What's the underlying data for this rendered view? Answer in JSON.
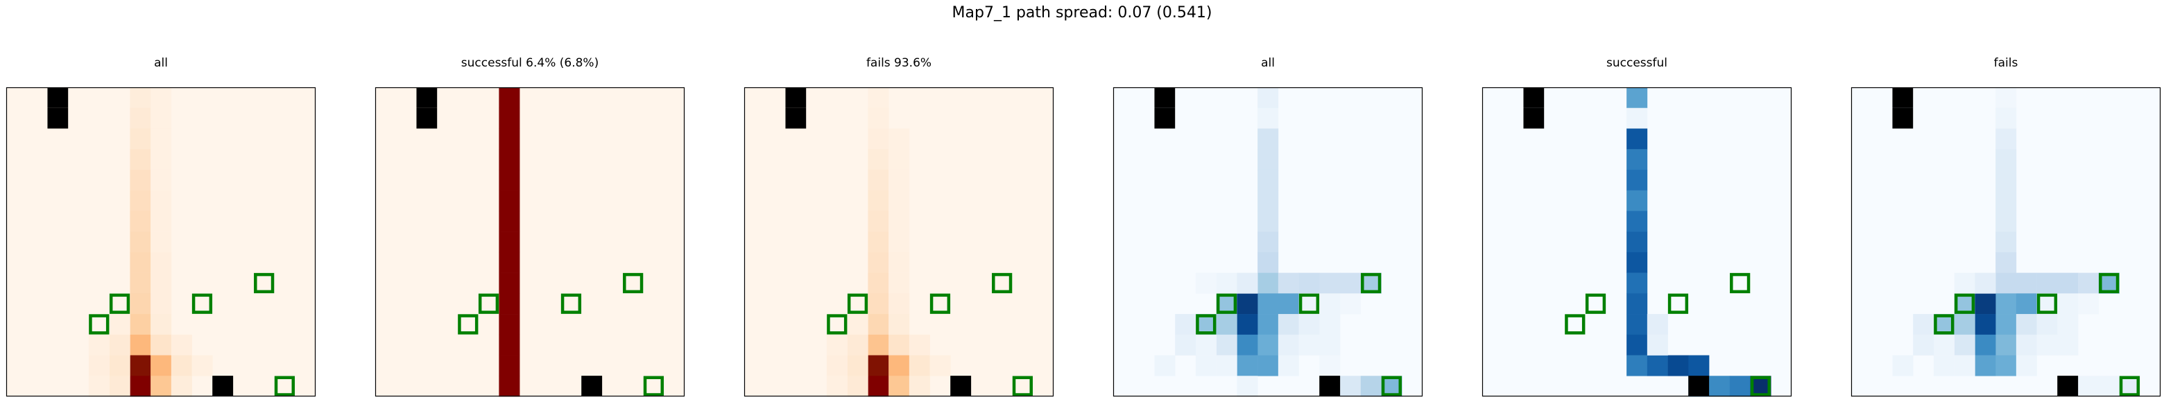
{
  "suptitle": "Map7_1 path spread: 0.07 (0.541)",
  "chart_data": {
    "type": "heatmap",
    "grid": {
      "rows": 15,
      "cols": 15
    },
    "colormaps": {
      "Reds": [
        "#fff5eb",
        "#fee6ce",
        "#fdd0a2",
        "#fdae6b",
        "#fd8d3c",
        "#f16913",
        "#d94801",
        "#a63603",
        "#7f2704",
        "#800000"
      ],
      "Blues": [
        "#f7fbff",
        "#deebf7",
        "#c6dbef",
        "#9ecae1",
        "#6baed6",
        "#4292c6",
        "#2171b5",
        "#08519c",
        "#08306b"
      ]
    },
    "markers": {
      "obstacles": [
        [
          0,
          2
        ],
        [
          1,
          2
        ],
        [
          14,
          10
        ],
        [
          14,
          10
        ]
      ],
      "goals": [
        [
          9,
          12
        ],
        [
          10,
          5
        ],
        [
          10,
          9
        ],
        [
          11,
          4
        ],
        [
          14,
          13
        ]
      ]
    },
    "marker_colors": {
      "obstacle": "#000000",
      "goal_outline": "#008000"
    },
    "panels": [
      {
        "title": "all",
        "cmap": "Reds",
        "cells": [
          [
            0,
            6,
            0.06
          ],
          [
            1,
            6,
            0.08
          ],
          [
            2,
            6,
            0.1
          ],
          [
            3,
            6,
            0.12
          ],
          [
            4,
            6,
            0.14
          ],
          [
            5,
            6,
            0.15
          ],
          [
            6,
            6,
            0.16
          ],
          [
            7,
            6,
            0.17
          ],
          [
            8,
            6,
            0.18
          ],
          [
            9,
            6,
            0.18
          ],
          [
            10,
            6,
            0.19
          ],
          [
            11,
            6,
            0.22
          ],
          [
            12,
            6,
            0.3
          ],
          [
            13,
            6,
            0.95
          ],
          [
            14,
            6,
            1.0
          ],
          [
            0,
            7,
            0.03
          ],
          [
            1,
            7,
            0.03
          ],
          [
            2,
            7,
            0.03
          ],
          [
            3,
            7,
            0.03
          ],
          [
            4,
            7,
            0.03
          ],
          [
            5,
            7,
            0.04
          ],
          [
            6,
            7,
            0.04
          ],
          [
            7,
            7,
            0.04
          ],
          [
            8,
            7,
            0.05
          ],
          [
            9,
            7,
            0.05
          ],
          [
            10,
            7,
            0.05
          ],
          [
            11,
            7,
            0.06
          ],
          [
            12,
            7,
            0.12
          ],
          [
            13,
            7,
            0.3
          ],
          [
            14,
            7,
            0.25
          ],
          [
            11,
            5,
            0.04
          ],
          [
            12,
            5,
            0.08
          ],
          [
            13,
            5,
            0.1
          ],
          [
            14,
            5,
            0.08
          ],
          [
            12,
            4,
            0.04
          ],
          [
            13,
            4,
            0.05
          ],
          [
            14,
            4,
            0.04
          ],
          [
            12,
            8,
            0.05
          ],
          [
            13,
            8,
            0.1
          ],
          [
            14,
            8,
            0.06
          ],
          [
            13,
            9,
            0.04
          ]
        ]
      },
      {
        "title": "successful 6.4% (6.8%)",
        "cmap": "Reds",
        "cells": [
          [
            0,
            6,
            1.0
          ],
          [
            1,
            6,
            1.0
          ],
          [
            2,
            6,
            1.0
          ],
          [
            3,
            6,
            1.0
          ],
          [
            4,
            6,
            1.0
          ],
          [
            5,
            6,
            1.0
          ],
          [
            6,
            6,
            1.0
          ],
          [
            7,
            6,
            1.0
          ],
          [
            8,
            6,
            1.0
          ],
          [
            9,
            6,
            1.0
          ],
          [
            10,
            6,
            1.0
          ],
          [
            11,
            6,
            1.0
          ],
          [
            12,
            6,
            1.0
          ],
          [
            13,
            6,
            1.0
          ],
          [
            14,
            6,
            1.0
          ]
        ]
      },
      {
        "title": "fails 93.6%",
        "cmap": "Reds",
        "cells": [
          [
            0,
            6,
            0.03
          ],
          [
            1,
            6,
            0.04
          ],
          [
            2,
            6,
            0.05
          ],
          [
            3,
            6,
            0.07
          ],
          [
            4,
            6,
            0.09
          ],
          [
            5,
            6,
            0.1
          ],
          [
            6,
            6,
            0.11
          ],
          [
            7,
            6,
            0.12
          ],
          [
            8,
            6,
            0.13
          ],
          [
            9,
            6,
            0.14
          ],
          [
            10,
            6,
            0.15
          ],
          [
            11,
            6,
            0.18
          ],
          [
            12,
            6,
            0.26
          ],
          [
            13,
            6,
            0.95
          ],
          [
            14,
            6,
            1.0
          ],
          [
            2,
            7,
            0.03
          ],
          [
            3,
            7,
            0.03
          ],
          [
            4,
            7,
            0.03
          ],
          [
            5,
            7,
            0.03
          ],
          [
            6,
            7,
            0.03
          ],
          [
            7,
            7,
            0.03
          ],
          [
            8,
            7,
            0.04
          ],
          [
            9,
            7,
            0.04
          ],
          [
            10,
            7,
            0.05
          ],
          [
            11,
            7,
            0.06
          ],
          [
            12,
            7,
            0.12
          ],
          [
            13,
            7,
            0.3
          ],
          [
            14,
            7,
            0.25
          ],
          [
            11,
            5,
            0.04
          ],
          [
            12,
            5,
            0.08
          ],
          [
            13,
            5,
            0.1
          ],
          [
            14,
            5,
            0.08
          ],
          [
            12,
            4,
            0.04
          ],
          [
            13,
            4,
            0.05
          ],
          [
            14,
            4,
            0.04
          ],
          [
            12,
            8,
            0.05
          ],
          [
            13,
            8,
            0.1
          ],
          [
            14,
            8,
            0.06
          ],
          [
            13,
            9,
            0.04
          ]
        ]
      },
      {
        "title": "all",
        "cmap": "Blues",
        "cells": [
          [
            0,
            7,
            0.08
          ],
          [
            1,
            7,
            0.05
          ],
          [
            2,
            7,
            0.18
          ],
          [
            3,
            7,
            0.18
          ],
          [
            4,
            7,
            0.18
          ],
          [
            5,
            7,
            0.18
          ],
          [
            6,
            7,
            0.18
          ],
          [
            7,
            7,
            0.22
          ],
          [
            8,
            7,
            0.25
          ],
          [
            9,
            7,
            0.35
          ],
          [
            10,
            7,
            0.55
          ],
          [
            11,
            7,
            0.55
          ],
          [
            12,
            7,
            0.5
          ],
          [
            13,
            7,
            0.55
          ],
          [
            9,
            8,
            0.2
          ],
          [
            10,
            8,
            0.55
          ],
          [
            11,
            8,
            0.15
          ],
          [
            12,
            8,
            0.08
          ],
          [
            13,
            8,
            0.05
          ],
          [
            9,
            9,
            0.22
          ],
          [
            10,
            9,
            0.05
          ],
          [
            11,
            9,
            0.08
          ],
          [
            12,
            9,
            0.05
          ],
          [
            9,
            10,
            0.2
          ],
          [
            10,
            10,
            0.05
          ],
          [
            11,
            10,
            0.05
          ],
          [
            12,
            10,
            0.05
          ],
          [
            13,
            10,
            0.03
          ],
          [
            9,
            11,
            0.2
          ],
          [
            10,
            11,
            0.03
          ],
          [
            9,
            12,
            0.35
          ],
          [
            14,
            11,
            0.15
          ],
          [
            14,
            12,
            0.3
          ],
          [
            14,
            13,
            0.45
          ],
          [
            10,
            5,
            0.4
          ],
          [
            10,
            6,
            0.95
          ],
          [
            11,
            6,
            0.9
          ],
          [
            12,
            6,
            0.65
          ],
          [
            13,
            6,
            0.55
          ],
          [
            14,
            6,
            0.05
          ],
          [
            11,
            4,
            0.4
          ],
          [
            11,
            5,
            0.35
          ],
          [
            12,
            5,
            0.15
          ],
          [
            13,
            5,
            0.05
          ],
          [
            12,
            4,
            0.05
          ],
          [
            13,
            4,
            0.05
          ],
          [
            11,
            3,
            0.1
          ],
          [
            12,
            3,
            0.08
          ],
          [
            13,
            2,
            0.05
          ],
          [
            9,
            5,
            0.05
          ],
          [
            9,
            6,
            0.1
          ],
          [
            9,
            4,
            0.03
          ]
        ]
      },
      {
        "title": "successful",
        "cmap": "Blues",
        "cells": [
          [
            0,
            7,
            0.55
          ],
          [
            1,
            7,
            0.05
          ],
          [
            2,
            7,
            0.85
          ],
          [
            3,
            7,
            0.7
          ],
          [
            4,
            7,
            0.75
          ],
          [
            5,
            7,
            0.65
          ],
          [
            6,
            7,
            0.75
          ],
          [
            7,
            7,
            0.8
          ],
          [
            8,
            7,
            0.85
          ],
          [
            9,
            7,
            0.75
          ],
          [
            10,
            7,
            0.8
          ],
          [
            11,
            7,
            0.8
          ],
          [
            12,
            7,
            0.85
          ],
          [
            13,
            7,
            0.7
          ],
          [
            13,
            8,
            0.8
          ],
          [
            13,
            9,
            0.9
          ],
          [
            13,
            10,
            0.85
          ],
          [
            14,
            10,
            0.7
          ],
          [
            14,
            11,
            0.65
          ],
          [
            14,
            12,
            0.7
          ],
          [
            14,
            13,
            1.0
          ],
          [
            11,
            8,
            0.1
          ],
          [
            12,
            8,
            0.08
          ]
        ]
      },
      {
        "title": "fails",
        "cmap": "Blues",
        "cells": [
          [
            0,
            7,
            0.03
          ],
          [
            1,
            7,
            0.05
          ],
          [
            2,
            7,
            0.1
          ],
          [
            3,
            7,
            0.12
          ],
          [
            4,
            7,
            0.12
          ],
          [
            5,
            7,
            0.12
          ],
          [
            6,
            7,
            0.12
          ],
          [
            7,
            7,
            0.15
          ],
          [
            8,
            7,
            0.2
          ],
          [
            9,
            7,
            0.25
          ],
          [
            10,
            7,
            0.5
          ],
          [
            11,
            7,
            0.5
          ],
          [
            12,
            7,
            0.45
          ],
          [
            13,
            7,
            0.5
          ],
          [
            9,
            8,
            0.25
          ],
          [
            10,
            8,
            0.55
          ],
          [
            11,
            8,
            0.15
          ],
          [
            12,
            8,
            0.08
          ],
          [
            13,
            8,
            0.05
          ],
          [
            9,
            9,
            0.25
          ],
          [
            10,
            9,
            0.05
          ],
          [
            11,
            9,
            0.08
          ],
          [
            12,
            9,
            0.05
          ],
          [
            9,
            10,
            0.25
          ],
          [
            10,
            10,
            0.05
          ],
          [
            11,
            10,
            0.05
          ],
          [
            12,
            10,
            0.05
          ],
          [
            9,
            11,
            0.2
          ],
          [
            10,
            11,
            0.03
          ],
          [
            9,
            12,
            0.45
          ],
          [
            14,
            11,
            0.05
          ],
          [
            14,
            12,
            0.05
          ],
          [
            14,
            13,
            0.1
          ],
          [
            10,
            5,
            0.4
          ],
          [
            10,
            6,
            0.95
          ],
          [
            11,
            6,
            0.9
          ],
          [
            12,
            6,
            0.65
          ],
          [
            13,
            6,
            0.55
          ],
          [
            11,
            4,
            0.4
          ],
          [
            11,
            5,
            0.35
          ],
          [
            12,
            5,
            0.15
          ],
          [
            13,
            5,
            0.05
          ],
          [
            12,
            4,
            0.05
          ],
          [
            13,
            4,
            0.05
          ],
          [
            11,
            3,
            0.1
          ],
          [
            12,
            3,
            0.08
          ],
          [
            13,
            2,
            0.05
          ],
          [
            9,
            5,
            0.05
          ],
          [
            9,
            6,
            0.1
          ]
        ]
      }
    ]
  }
}
